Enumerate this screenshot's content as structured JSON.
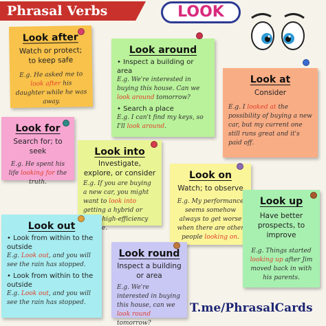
{
  "header": {
    "banner_text": "Phrasal Verbs",
    "badge_text": "LOOK",
    "banner_color": "#c8312c",
    "badge_text_color": "#d92b7d"
  },
  "notes": {
    "look_after": {
      "title": "Look after",
      "definition": "Watch or protect; to keep safe",
      "example": {
        "pre": "E.g. He asked me to ",
        "hl": "look after",
        "post": " his daughter while he was away."
      }
    },
    "look_around": {
      "title": "Look around",
      "sense1": "Inspect a building or area",
      "example1": {
        "pre": "E.g. We're interested in buying this house. Can we ",
        "hl": "look around",
        "post": " tomorrow?"
      },
      "sense2": "Search a place",
      "example2": {
        "pre": "E.g. I can't find my keys, so I'll ",
        "hl": "look around",
        "post": "."
      }
    },
    "look_at": {
      "title": "Look at",
      "definition": "Consider",
      "example": {
        "pre": "E.g. I ",
        "hl": "looked at",
        "post": " the possibility of buying a new car, but my current one still runs great and it's paid off."
      }
    },
    "look_for": {
      "title": "Look for",
      "definition": "Search for; to seek",
      "example": {
        "pre": "E.g. He spent his life ",
        "hl": "looking for",
        "post": " the truth."
      }
    },
    "look_into": {
      "title": "Look into",
      "definition": "Investigate, explore, or consider",
      "example": {
        "pre": "E.g. If you are buying a new car, you might want to ",
        "hl": "look into",
        "post": " getting a hybrid or other high-efficiency vehicle."
      }
    },
    "look_on": {
      "title": "Look on",
      "definition": "Watch; to observe",
      "example": {
        "pre": "E.g. My performance seems somehow always to get worse when there are other people ",
        "hl": "looking on",
        "post": "."
      }
    },
    "look_up": {
      "title": "Look up",
      "definition": "Have better prospects, to improve",
      "example": {
        "pre": "E.g. Things started ",
        "hl": "looking up",
        "post": " after Jim moved back in with his parents."
      }
    },
    "look_out": {
      "title": "Look out",
      "sense1": "Look from within to the outside",
      "example1": {
        "pre": "E.g. ",
        "hl": "Look out",
        "post": ", and you will see the rain has stopped."
      },
      "sense2": "Look from within to the outside",
      "example2": {
        "pre": "E.g. ",
        "hl": "Look out",
        "post": ", and you will see the rain has stopped."
      }
    },
    "look_round": {
      "title": "Look round",
      "definition": "Inspect a building or area",
      "example": {
        "pre": "E.g. We're interested in buying this house, can we ",
        "hl": "look round",
        "post": " tomorrow?"
      }
    }
  },
  "footer": {
    "text": "T.me/PhrasalCards"
  },
  "colors": {
    "orange": "#f9c24a",
    "green": "#b9f29a",
    "peach": "#f9ad85",
    "pink": "#f7a6d2",
    "lime": "#e9f494",
    "yellow": "#fbf59a",
    "mint": "#a8f0b0",
    "cyan": "#a7ecf0",
    "lavender": "#c9c7f4",
    "highlight": "#e0412c"
  },
  "icons": [
    "push-pin-icon",
    "cartoon-eyes-icon"
  ]
}
